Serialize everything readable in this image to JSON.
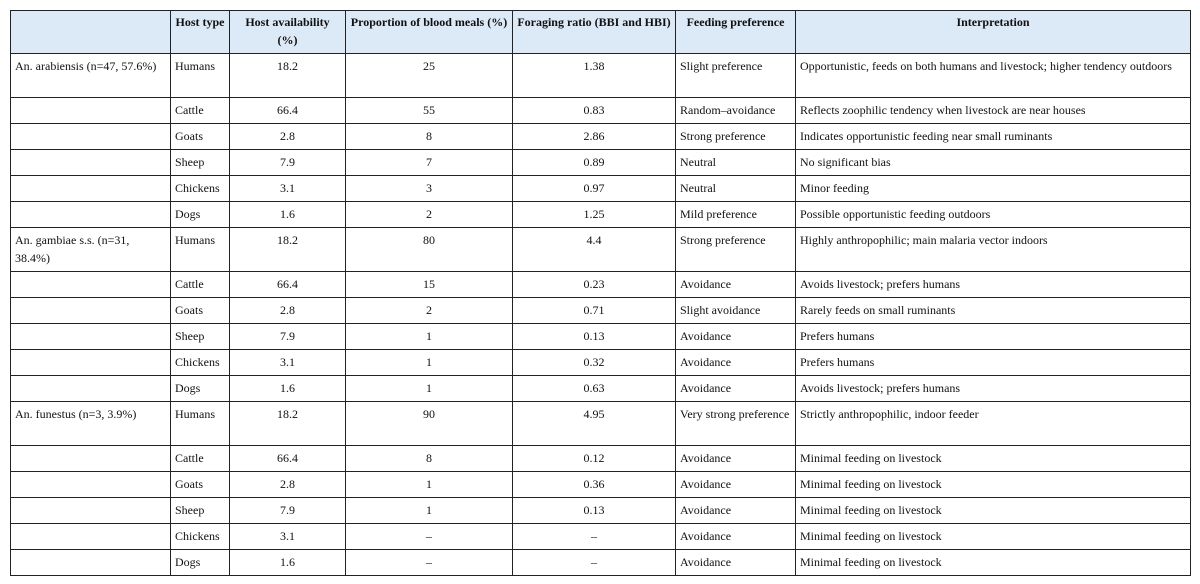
{
  "header": {
    "columns": [
      "",
      "Host type",
      "Host availability (%)",
      "Proportion of blood meals (%)",
      "Foraging ratio (BBI and HBI)",
      "Feeding preference",
      "Interpretation"
    ]
  },
  "groups": [
    {
      "species": "An. arabiensis (n=47, 57.6%)",
      "rows": [
        [
          "Humans",
          "18.2",
          "25",
          "1.38",
          "Slight preference",
          "Opportunistic, feeds on both humans and livestock; higher tendency outdoors"
        ],
        [
          "Cattle",
          "66.4",
          "55",
          "0.83",
          "Random–avoidance",
          "Reflects zoophilic tendency when livestock are near houses"
        ],
        [
          "Goats",
          "2.8",
          "8",
          "2.86",
          "Strong preference",
          "Indicates opportunistic feeding near small ruminants"
        ],
        [
          "Sheep",
          "7.9",
          "7",
          "0.89",
          "Neutral",
          "No significant bias"
        ],
        [
          "Chickens",
          "3.1",
          "3",
          "0.97",
          "Neutral",
          "Minor feeding"
        ],
        [
          "Dogs",
          "1.6",
          "2",
          "1.25",
          "Mild preference",
          "Possible opportunistic feeding outdoors"
        ]
      ]
    },
    {
      "species": "An. gambiae s.s. (n=31, 38.4%)",
      "rows": [
        [
          "Humans",
          "18.2",
          "80",
          "4.4",
          "Strong preference",
          "Highly anthropophilic; main malaria vector indoors"
        ],
        [
          "Cattle",
          "66.4",
          "15",
          "0.23",
          "Avoidance",
          "Avoids livestock; prefers humans"
        ],
        [
          "Goats",
          "2.8",
          "2",
          "0.71",
          "Slight avoidance",
          "Rarely feeds on small ruminants"
        ],
        [
          "Sheep",
          "7.9",
          "1",
          "0.13",
          "Avoidance",
          "Prefers humans"
        ],
        [
          "Chickens",
          "3.1",
          "1",
          "0.32",
          "Avoidance",
          "Prefers humans"
        ],
        [
          "Dogs",
          "1.6",
          "1",
          "0.63",
          "Avoidance",
          "Avoids livestock; prefers humans"
        ]
      ]
    },
    {
      "species": "An. funestus (n=3, 3.9%)",
      "rows": [
        [
          "Humans",
          "18.2",
          "90",
          "4.95",
          "Very strong preference",
          "Strictly anthropophilic, indoor feeder"
        ],
        [
          "Cattle",
          "66.4",
          "8",
          "0.12",
          "Avoidance",
          "Minimal feeding on livestock"
        ],
        [
          "Goats",
          "2.8",
          "1",
          "0.36",
          "Avoidance",
          "Minimal feeding on livestock"
        ],
        [
          "Sheep",
          "7.9",
          "1",
          "0.13",
          "Avoidance",
          "Minimal feeding on livestock"
        ],
        [
          "Chickens",
          "3.1",
          "–",
          "–",
          "Avoidance",
          "Minimal feeding on livestock"
        ],
        [
          "Dogs",
          "1.6",
          "–",
          "–",
          "Avoidance",
          "Minimal feeding on livestock"
        ]
      ]
    }
  ]
}
